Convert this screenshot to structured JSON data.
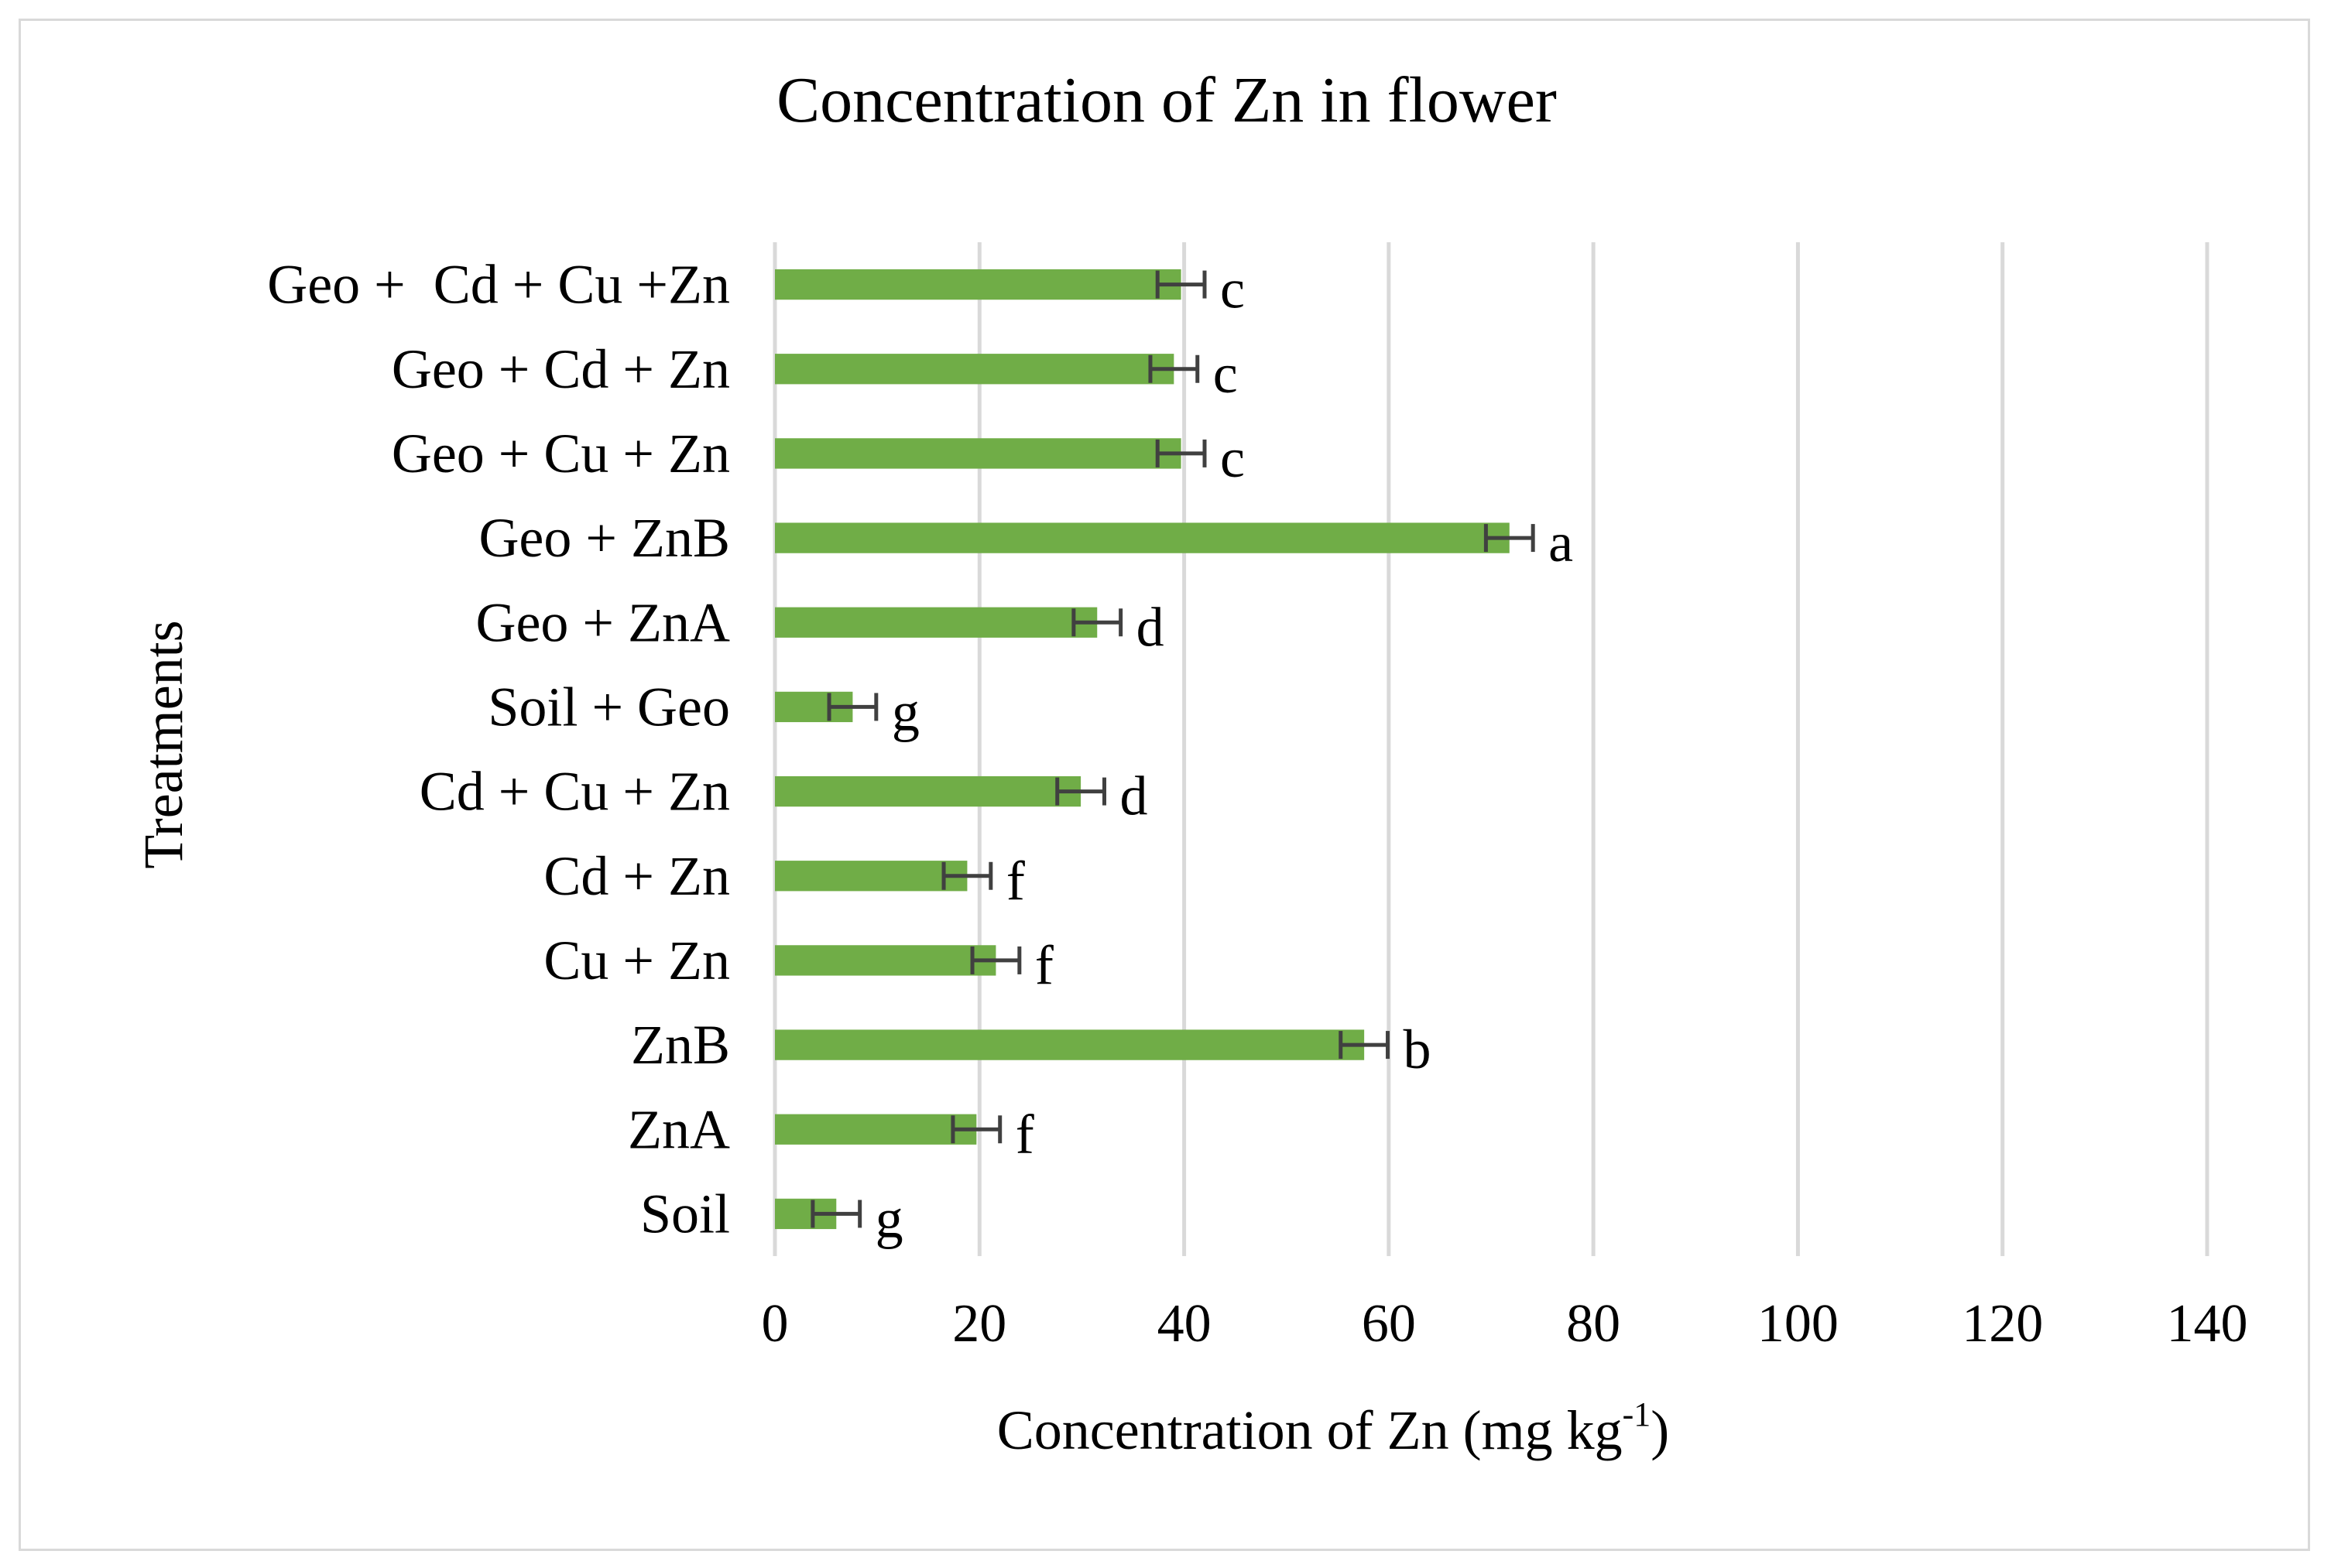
{
  "chart_data": {
    "type": "bar",
    "orientation": "horizontal",
    "title": "Concentration of Zn in flower",
    "xlabel": "Concentration of Zn  (mg kg",
    "xlabel_superscript": "-1",
    "xlabel_suffix": ")",
    "ylabel": "Treatments",
    "xlim": [
      0,
      140
    ],
    "x_ticks": [
      "0",
      "20",
      "40",
      "60",
      "80",
      "100",
      "120",
      "140"
    ],
    "grid": "vertical",
    "bar_color": "#70ad47",
    "error_color": "#404040",
    "categories": [
      "Geo +  Cd + Cu +Zn",
      "Geo + Cd + Zn",
      "Geo + Cu + Zn",
      "Geo + ZnB",
      "Geo + ZnA",
      "Soil + Geo",
      "Cd + Cu + Zn",
      "Cd + Zn",
      "Cu + Zn",
      "ZnB",
      "ZnA",
      "Soil"
    ],
    "values": [
      39.7,
      39.0,
      39.7,
      71.8,
      31.5,
      7.6,
      29.9,
      18.8,
      21.6,
      57.6,
      19.7,
      6.0
    ],
    "errors": [
      2.3,
      2.3,
      2.3,
      2.3,
      2.3,
      2.3,
      2.3,
      2.3,
      2.3,
      2.3,
      2.3,
      2.3
    ],
    "significance_letters": [
      "c",
      "c",
      "c",
      "a",
      "d",
      "g",
      "d",
      "f",
      "f",
      "b",
      "f",
      "g"
    ]
  }
}
